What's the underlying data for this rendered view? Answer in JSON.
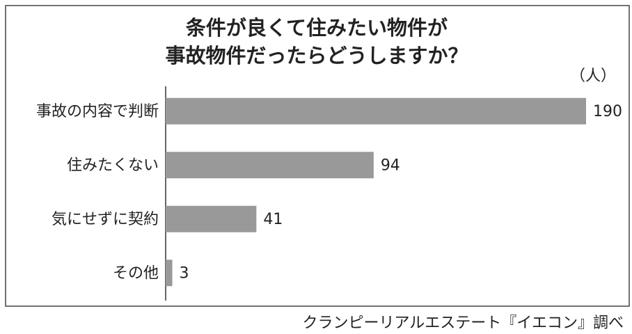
{
  "chart_data": {
    "type": "hbar",
    "title": [
      "条件が良くて住みたい物件が",
      "事故物件だったらどうしますか？"
    ],
    "unit_label": "（人）",
    "categories": [
      "事故の内容で判断",
      "住みたくない",
      "気にせずに契約",
      "その他"
    ],
    "values": [
      190,
      94,
      41,
      3
    ],
    "color": "#999999",
    "source": "クランピーリアルエステート『イエコン』調べ"
  }
}
